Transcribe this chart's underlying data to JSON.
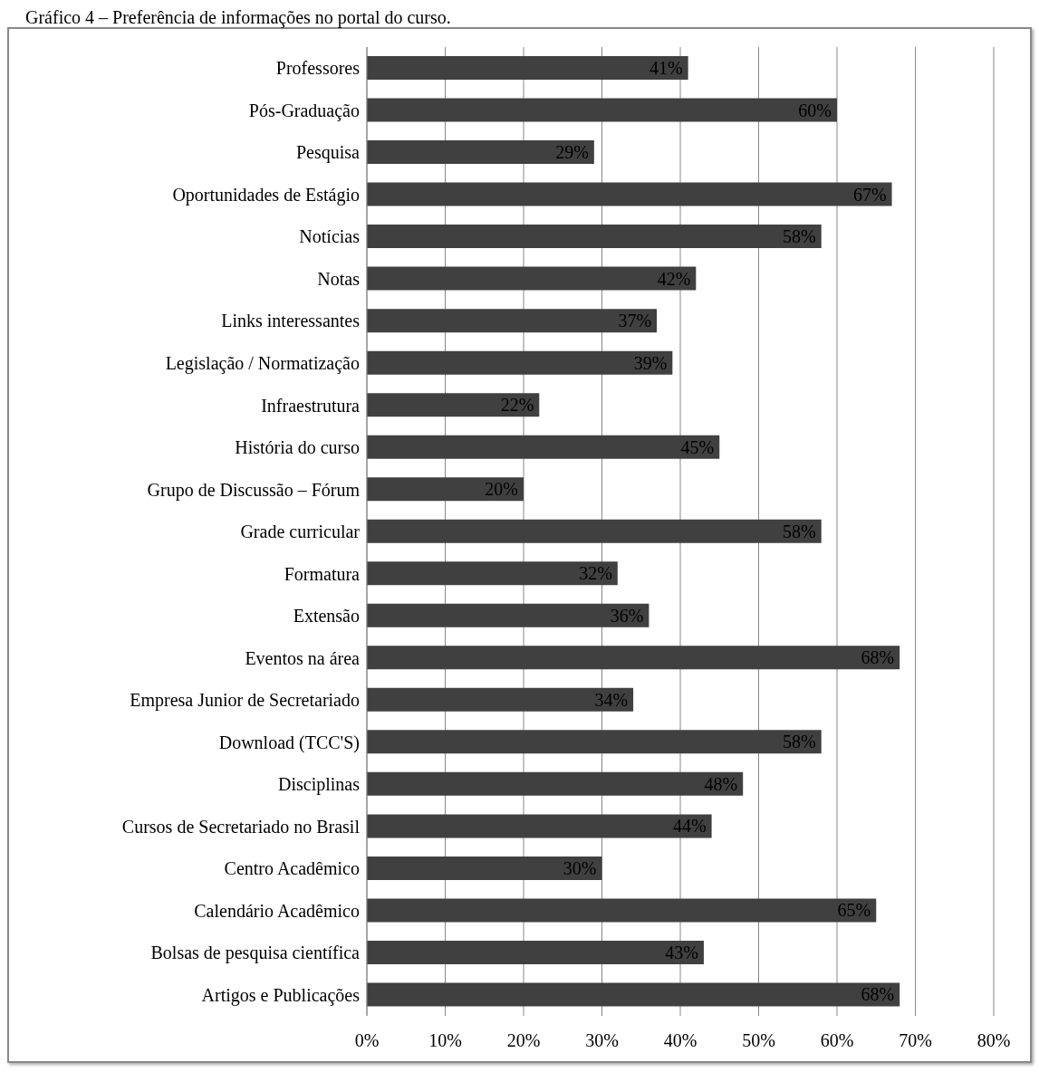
{
  "chart_data": {
    "type": "bar",
    "orientation": "horizontal",
    "title": "Gráfico 4 – Preferência de informações no portal do curso.",
    "categories": [
      "Professores",
      "Pós-Graduação",
      "Pesquisa",
      "Oportunidades de Estágio",
      "Notícias",
      "Notas",
      "Links interessantes",
      "Legislação / Normatização",
      "Infraestrutura",
      "História do curso",
      "Grupo de Discussão – Fórum",
      "Grade curricular",
      "Formatura",
      "Extensão",
      "Eventos na área",
      "Empresa Junior de Secretariado",
      "Download (TCC'S)",
      "Disciplinas",
      "Cursos de Secretariado no Brasil",
      "Centro Acadêmico",
      "Calendário Acadêmico",
      "Bolsas de pesquisa científica",
      "Artigos e Publicações"
    ],
    "values": [
      41,
      60,
      29,
      67,
      58,
      42,
      37,
      39,
      22,
      45,
      20,
      58,
      32,
      36,
      68,
      34,
      58,
      48,
      44,
      30,
      65,
      43,
      68
    ],
    "value_labels": [
      "41%",
      "60%",
      "29%",
      "67%",
      "58%",
      "42%",
      "37%",
      "39%",
      "22%",
      "45%",
      "20%",
      "58%",
      "32%",
      "36%",
      "68%",
      "34%",
      "58%",
      "48%",
      "44%",
      "30%",
      "65%",
      "43%",
      "68%"
    ],
    "color": "#404040",
    "xlim": [
      0,
      80
    ],
    "xticks": [
      {
        "value": 0,
        "label": "0%"
      },
      {
        "value": 10,
        "label": "10%"
      },
      {
        "value": 20,
        "label": "20%"
      },
      {
        "value": 30,
        "label": "30%"
      },
      {
        "value": 40,
        "label": "40%"
      },
      {
        "value": 50,
        "label": "50%"
      },
      {
        "value": 60,
        "label": "60%"
      },
      {
        "value": 70,
        "label": "70%"
      },
      {
        "value": 80,
        "label": "80%"
      }
    ],
    "grid": "x"
  }
}
